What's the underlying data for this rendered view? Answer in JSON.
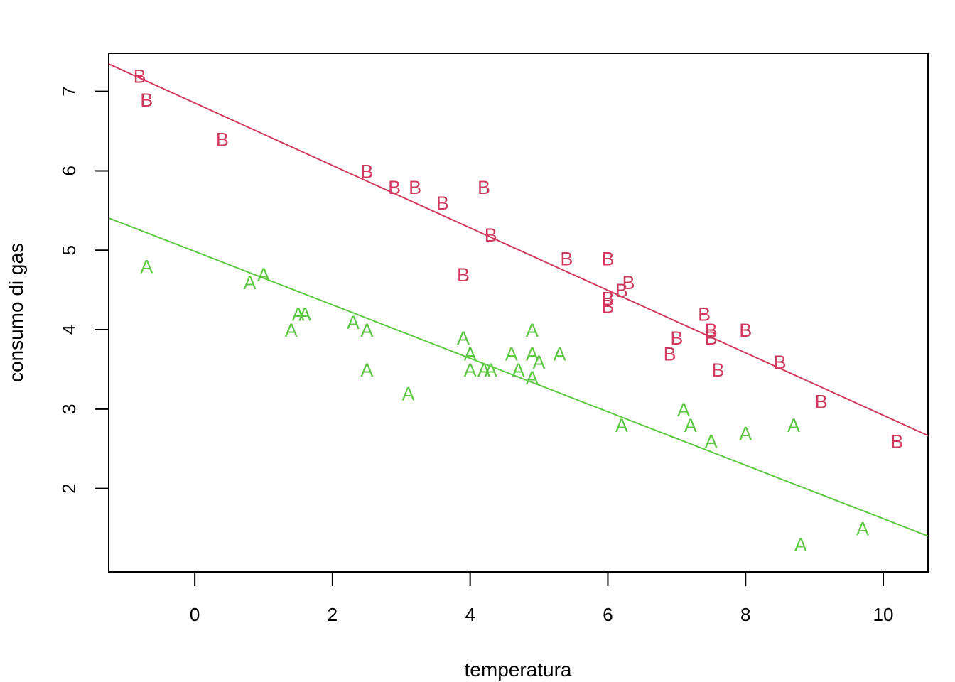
{
  "chart_data": {
    "type": "scatter",
    "title": "",
    "xlabel": "temperatura",
    "ylabel": "consumo di gas",
    "xlim": [
      -1.25,
      10.65
    ],
    "ylim": [
      0.95,
      7.48
    ],
    "xticks": [
      0,
      2,
      4,
      6,
      8,
      10
    ],
    "yticks": [
      2,
      3,
      4,
      5,
      6,
      7
    ],
    "grid": false,
    "legend": "none",
    "series": [
      {
        "marker": "B",
        "color": "#d03a5e",
        "points": [
          [
            -0.8,
            7.2
          ],
          [
            -0.7,
            6.9
          ],
          [
            0.4,
            6.4
          ],
          [
            2.5,
            6.0
          ],
          [
            2.9,
            5.8
          ],
          [
            3.2,
            5.8
          ],
          [
            3.6,
            5.6
          ],
          [
            4.2,
            5.8
          ],
          [
            4.3,
            5.2
          ],
          [
            3.9,
            4.7
          ],
          [
            5.4,
            4.9
          ],
          [
            6.0,
            4.9
          ],
          [
            6.0,
            4.4
          ],
          [
            6.0,
            4.3
          ],
          [
            6.2,
            4.5
          ],
          [
            6.3,
            4.6
          ],
          [
            7.4,
            4.2
          ],
          [
            7.5,
            4.0
          ],
          [
            7.5,
            3.9
          ],
          [
            7.0,
            3.9
          ],
          [
            8.0,
            4.0
          ],
          [
            6.9,
            3.7
          ],
          [
            7.6,
            3.5
          ],
          [
            8.5,
            3.6
          ],
          [
            9.1,
            3.1
          ],
          [
            10.2,
            2.6
          ]
        ],
        "fit": {
          "intercept": 6.854,
          "slope": -0.3932
        }
      },
      {
        "marker": "A",
        "color": "#5cc842",
        "points": [
          [
            -0.7,
            4.8
          ],
          [
            0.8,
            4.6
          ],
          [
            1.0,
            4.7
          ],
          [
            1.4,
            4.0
          ],
          [
            1.5,
            4.2
          ],
          [
            1.6,
            4.2
          ],
          [
            2.3,
            4.1
          ],
          [
            2.5,
            4.0
          ],
          [
            2.5,
            3.5
          ],
          [
            3.1,
            3.2
          ],
          [
            3.9,
            3.9
          ],
          [
            4.0,
            3.7
          ],
          [
            4.0,
            3.5
          ],
          [
            4.2,
            3.5
          ],
          [
            4.3,
            3.5
          ],
          [
            4.6,
            3.7
          ],
          [
            4.7,
            3.5
          ],
          [
            4.9,
            3.4
          ],
          [
            4.9,
            3.7
          ],
          [
            4.9,
            4.0
          ],
          [
            5.0,
            3.6
          ],
          [
            5.3,
            3.7
          ],
          [
            6.2,
            2.8
          ],
          [
            7.1,
            3.0
          ],
          [
            7.2,
            2.8
          ],
          [
            7.5,
            2.6
          ],
          [
            8.0,
            2.7
          ],
          [
            8.7,
            2.8
          ],
          [
            8.8,
            1.3
          ],
          [
            9.7,
            1.5
          ]
        ],
        "fit": {
          "intercept": 4.9851,
          "slope": -0.3365
        }
      }
    ]
  }
}
